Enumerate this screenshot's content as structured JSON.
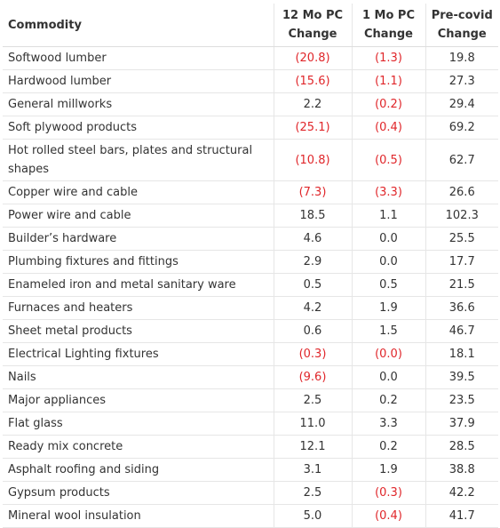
{
  "headers": {
    "commodity": "Commodity",
    "mo12": "12 Mo PC Change",
    "mo1": "1 Mo PC Change",
    "precovid": "Pre-covid Change"
  },
  "rows": [
    {
      "name": "Softwood lumber",
      "mo12": "(20.8)",
      "mo1": "(1.3)",
      "pre": "19.8"
    },
    {
      "name": "Hardwood lumber",
      "mo12": "(15.6)",
      "mo1": "(1.1)",
      "pre": "27.3"
    },
    {
      "name": "General millworks",
      "mo12": "2.2",
      "mo1": "(0.2)",
      "pre": "29.4"
    },
    {
      "name": "Soft plywood products",
      "mo12": "(25.1)",
      "mo1": "(0.4)",
      "pre": "69.2"
    },
    {
      "name": "Hot rolled steel bars, plates and structural shapes",
      "mo12": "(10.8)",
      "mo1": "(0.5)",
      "pre": "62.7"
    },
    {
      "name": "Copper wire and cable",
      "mo12": "(7.3)",
      "mo1": "(3.3)",
      "pre": "26.6"
    },
    {
      "name": "Power wire and cable",
      "mo12": "18.5",
      "mo1": "1.1",
      "pre": "102.3"
    },
    {
      "name": "Builder’s hardware",
      "mo12": "4.6",
      "mo1": "0.0",
      "pre": "25.5"
    },
    {
      "name": "Plumbing fixtures and fittings",
      "mo12": "2.9",
      "mo1": "0.0",
      "pre": "17.7"
    },
    {
      "name": "Enameled iron and metal sanitary ware",
      "mo12": "0.5",
      "mo1": "0.5",
      "pre": "21.5"
    },
    {
      "name": "Furnaces and heaters",
      "mo12": "4.2",
      "mo1": "1.9",
      "pre": "36.6"
    },
    {
      "name": "Sheet metal products",
      "mo12": "0.6",
      "mo1": "1.5",
      "pre": "46.7"
    },
    {
      "name": "Electrical Lighting fixtures",
      "mo12": "(0.3)",
      "mo1": "(0.0)",
      "pre": "18.1"
    },
    {
      "name": "Nails",
      "mo12": "(9.6)",
      "mo1": "0.0",
      "pre": "39.5"
    },
    {
      "name": "Major appliances",
      "mo12": "2.5",
      "mo1": "0.2",
      "pre": "23.5"
    },
    {
      "name": "Flat glass",
      "mo12": "11.0",
      "mo1": "3.3",
      "pre": "37.9"
    },
    {
      "name": "Ready mix concrete",
      "mo12": "12.1",
      "mo1": "0.2",
      "pre": "28.5"
    },
    {
      "name": "Asphalt roofing and siding",
      "mo12": "3.1",
      "mo1": "1.9",
      "pre": "38.8"
    },
    {
      "name": "Gypsum products",
      "mo12": "2.5",
      "mo1": "(0.3)",
      "pre": "42.2"
    },
    {
      "name": "Mineral wool insulation",
      "mo12": "5.0",
      "mo1": "(0.4)",
      "pre": "41.7"
    }
  ],
  "colors": {
    "negative": "#e0262a",
    "text": "#333333",
    "border": "#e6e6e6"
  }
}
